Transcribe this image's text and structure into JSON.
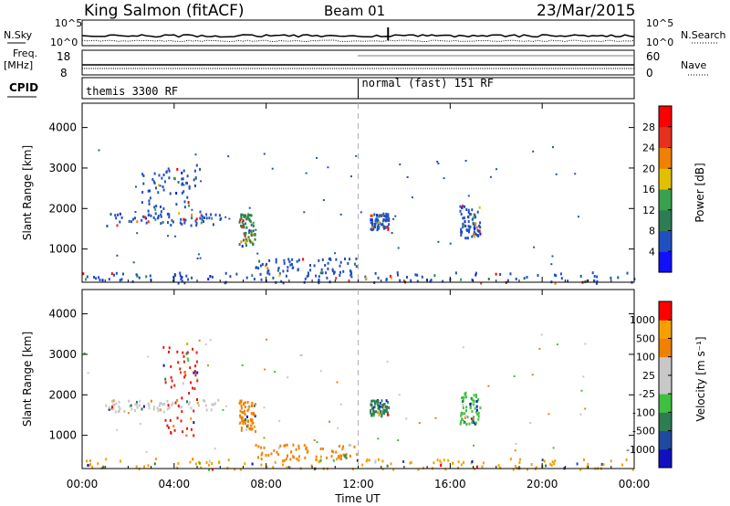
{
  "header": {
    "title": "King Salmon (fitACF)",
    "beam": "Beam 01",
    "date": "23/Mar/2015"
  },
  "summary_panels": {
    "nsky_label": "N.Sky",
    "nsky_ticks": [
      "10^5",
      "10^0"
    ],
    "nsearch_label": "N.Search",
    "nsearch_ticks": [
      "10^5",
      "10^0"
    ],
    "freq_label": "Freq.",
    "freq_unit": "[MHz]",
    "freq_ticks": [
      "18",
      "8"
    ],
    "nave_label": "Nave",
    "nave_ticks": [
      "60",
      "0"
    ],
    "cpid_label": "CPID",
    "cpid_segments": [
      {
        "label": "themis 3300 RF",
        "start_hour": 0
      },
      {
        "label": "normal (fast) 151 RF",
        "start_hour": 12.0
      }
    ]
  },
  "chart_data": [
    {
      "type": "heatmap",
      "name": "power",
      "xlabel": "",
      "ylabel": "Slant Range [km]",
      "y_ticks": [
        "1000",
        "2000",
        "3000",
        "4000"
      ],
      "ylim": [
        180,
        4600
      ],
      "xlim": [
        0,
        24
      ],
      "colorbar": {
        "label": "Power [dB]",
        "ticks": [
          "4",
          "8",
          "12",
          "16",
          "20",
          "24",
          "28"
        ],
        "colors": [
          "#1010ff",
          "#2050c0",
          "#2e7d52",
          "#3aa050",
          "#e0c000",
          "#f08000",
          "#e83020",
          "#ff0000"
        ]
      },
      "scatter_regions": [
        {
          "t": [
            1.0,
            6.0
          ],
          "r": [
            1600,
            1900
          ],
          "dominant": "#2050c0"
        },
        {
          "t": [
            2.5,
            5.2
          ],
          "r": [
            1900,
            3100
          ],
          "dominant": "#2050c0"
        },
        {
          "t": [
            6.8,
            7.5
          ],
          "r": [
            1100,
            1900
          ],
          "dominant": "#2e7d52"
        },
        {
          "t": [
            7.5,
            12.0
          ],
          "r": [
            400,
            800
          ],
          "dominant": "#2050c0"
        },
        {
          "t": [
            12.5,
            13.3
          ],
          "r": [
            1500,
            1900
          ],
          "dominant": "#2050c0"
        },
        {
          "t": [
            16.4,
            17.3
          ],
          "r": [
            1300,
            2100
          ],
          "dominant": "#2050c0"
        },
        {
          "t": [
            0.0,
            24.0
          ],
          "r": [
            180,
            450
          ],
          "dominant": "#2050c0"
        }
      ]
    },
    {
      "type": "heatmap",
      "name": "velocity",
      "xlabel": "Time UT",
      "ylabel": "Slant Range [km]",
      "x_ticks": [
        "00:00",
        "04:00",
        "08:00",
        "12:00",
        "16:00",
        "20:00",
        "00:00"
      ],
      "y_ticks": [
        "1000",
        "2000",
        "3000",
        "4000"
      ],
      "ylim": [
        180,
        4600
      ],
      "xlim": [
        0,
        24
      ],
      "colorbar": {
        "label": "Velocity [m s⁻¹]",
        "ticks": [
          "1000",
          "500",
          "100",
          "25",
          "-25",
          "-100",
          "-500",
          "-1000"
        ],
        "colors": [
          "#1010c0",
          "#204aa0",
          "#2e7d52",
          "#40c040",
          "#c8c8c8",
          "#c8c8c8",
          "#f08000",
          "#f5a000",
          "#ff0000"
        ]
      },
      "scatter_regions": [
        {
          "t": [
            1.0,
            6.0
          ],
          "r": [
            1600,
            1900
          ],
          "dominant": "#c8c8c8"
        },
        {
          "t": [
            3.5,
            5.0
          ],
          "r": [
            1000,
            3300
          ],
          "dominant": "#e02010"
        },
        {
          "t": [
            6.8,
            7.5
          ],
          "r": [
            1100,
            1900
          ],
          "dominant": "#f08000"
        },
        {
          "t": [
            7.5,
            12.0
          ],
          "r": [
            400,
            800
          ],
          "dominant": "#f08000"
        },
        {
          "t": [
            12.5,
            13.3
          ],
          "r": [
            1500,
            1900
          ],
          "dominant": "#2e7d52"
        },
        {
          "t": [
            16.4,
            17.3
          ],
          "r": [
            1300,
            2100
          ],
          "dominant": "#40c040"
        },
        {
          "t": [
            0.0,
            24.0
          ],
          "r": [
            180,
            450
          ],
          "dominant": "#f5a000"
        }
      ]
    }
  ]
}
